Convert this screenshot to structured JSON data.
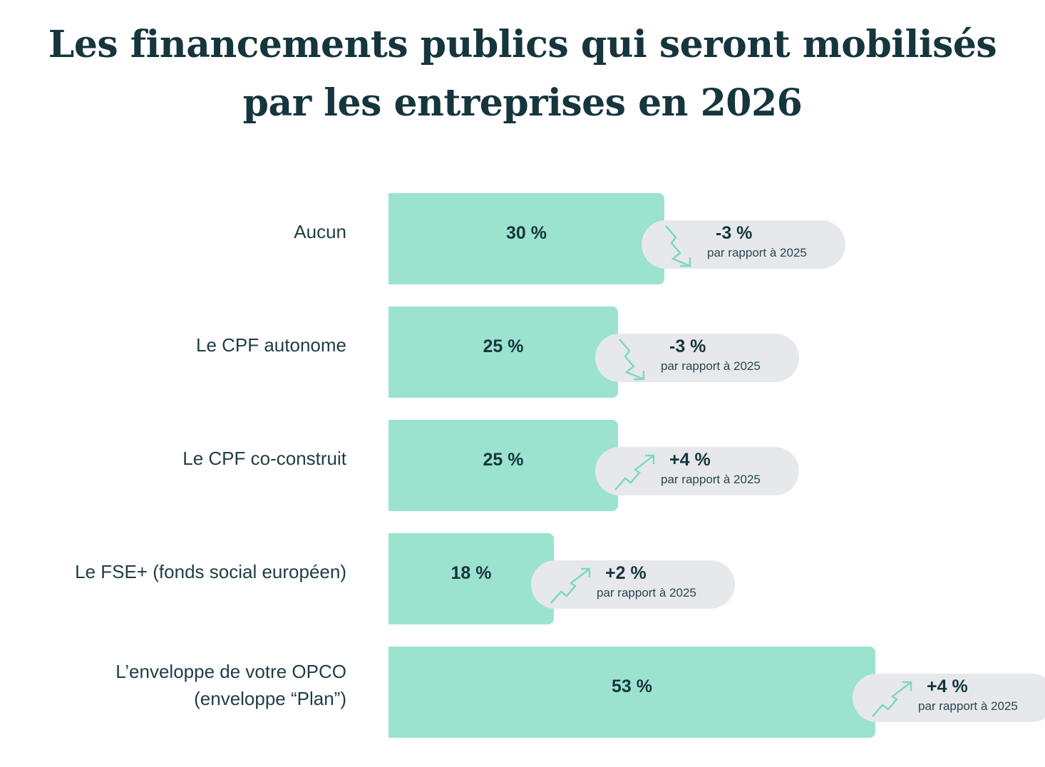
{
  "title_lines": [
    "Les financements publics qui seront mobilisés",
    "par les entreprises en 2026"
  ],
  "colors": {
    "bar": "#9be3cf",
    "pill": "#e6e8ec",
    "arrow": "#7fd8c0",
    "text": "#16353d"
  },
  "chart_data": {
    "type": "bar",
    "orientation": "horizontal",
    "title": "Les financements publics qui seront mobilisés par les entreprises en 2026",
    "unit": "%",
    "categories": [
      [
        "Aucun"
      ],
      [
        "Le CPF autonome"
      ],
      [
        "Le CPF co-construit"
      ],
      [
        "Le FSE+ (fonds social européen)"
      ],
      [
        "L’enveloppe de votre OPCO",
        "(enveloppe “Plan”)"
      ]
    ],
    "values": [
      30,
      25,
      25,
      18,
      53
    ],
    "value_labels": [
      "30 %",
      "25 %",
      "25 %",
      "18 %",
      "53 %"
    ],
    "changes": [
      -3,
      -3,
      4,
      2,
      4
    ],
    "change_labels": [
      "-3 %",
      "-3 %",
      "+4 %",
      "+2 %",
      "+4 %"
    ],
    "change_note": "par rapport à 2025",
    "change_icons": [
      "trend-down-icon",
      "trend-down-icon",
      "trend-up-icon",
      "trend-up-icon",
      "trend-up-icon"
    ],
    "xlim": [
      0,
      53
    ],
    "grid": false,
    "legend": "none"
  }
}
